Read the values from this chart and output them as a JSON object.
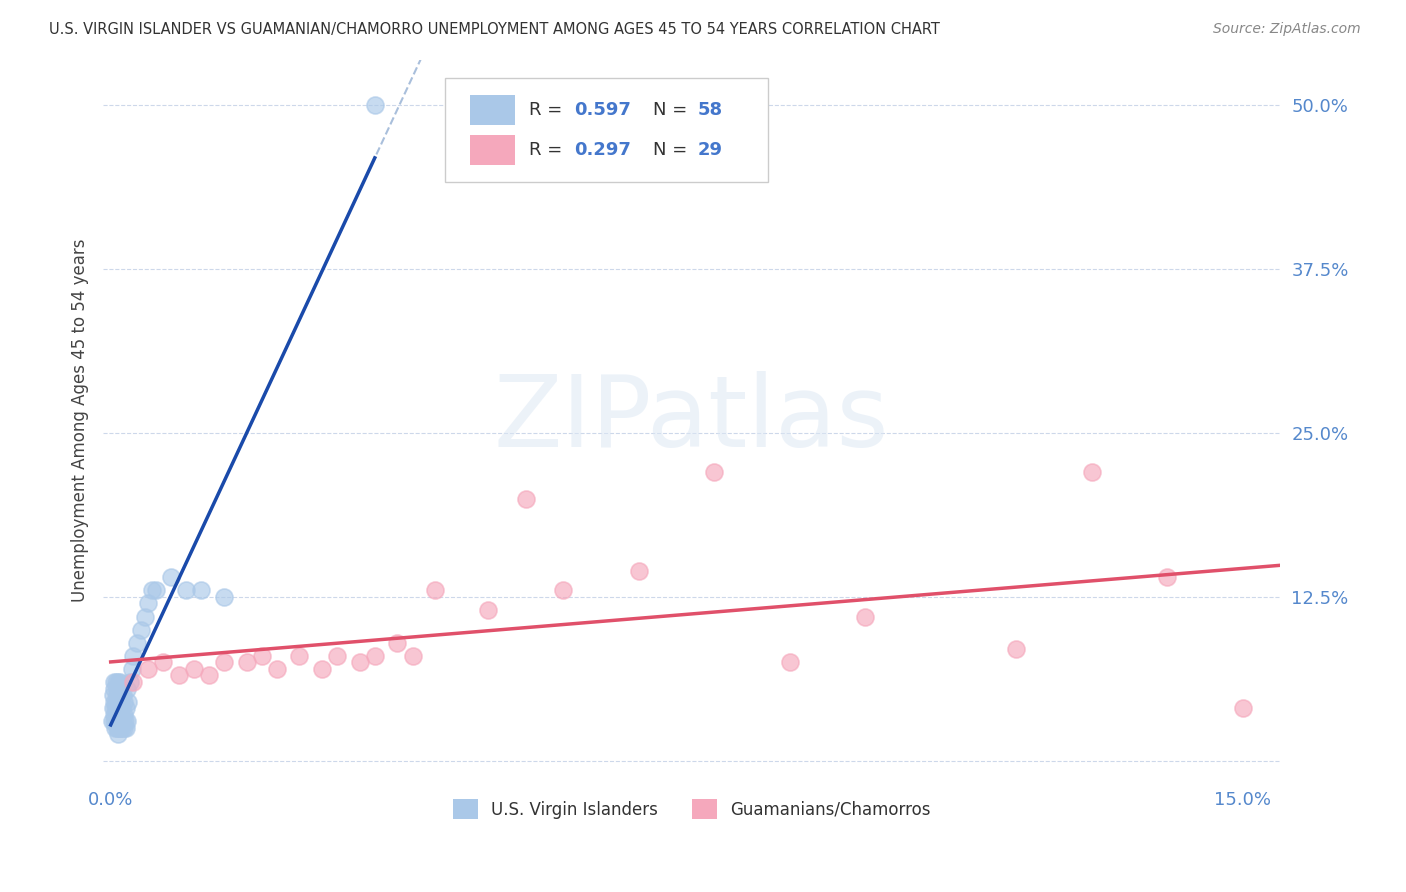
{
  "title": "U.S. VIRGIN ISLANDER VS GUAMANIAN/CHAMORRO UNEMPLOYMENT AMONG AGES 45 TO 54 YEARS CORRELATION CHART",
  "source": "Source: ZipAtlas.com",
  "ylabel": "Unemployment Among Ages 45 to 54 years",
  "legend_label1": "U.S. Virgin Islanders",
  "legend_label2": "Guamanians/Chamorros",
  "R1": "0.597",
  "N1": "58",
  "R2": "0.297",
  "N2": "29",
  "xlim": [
    -0.001,
    0.155
  ],
  "ylim": [
    -0.015,
    0.535
  ],
  "xtick_positions": [
    0.0,
    0.05,
    0.1,
    0.15
  ],
  "xtick_labels": [
    "0.0%",
    "",
    "",
    "15.0%"
  ],
  "ytick_positions": [
    0.0,
    0.125,
    0.25,
    0.375,
    0.5
  ],
  "ytick_labels": [
    "",
    "12.5%",
    "25.0%",
    "37.5%",
    "50.0%"
  ],
  "color_blue": "#aac8e8",
  "color_pink": "#f5a8bc",
  "line_color_blue": "#1a4aaa",
  "line_color_pink": "#e0506a",
  "line_color_grey": "#a0b8d8",
  "background_color": "#ffffff",
  "watermark_text": "ZIPatlas",
  "watermark_color": "#dde8f4",
  "tick_color": "#5588cc",
  "title_color": "#333333",
  "source_color": "#888888",
  "blue_x": [
    0.0002,
    0.0003,
    0.0003,
    0.0004,
    0.0004,
    0.0005,
    0.0005,
    0.0005,
    0.0006,
    0.0006,
    0.0007,
    0.0007,
    0.0007,
    0.0008,
    0.0008,
    0.0008,
    0.0009,
    0.0009,
    0.001,
    0.001,
    0.001,
    0.001,
    0.0011,
    0.0011,
    0.0012,
    0.0012,
    0.0012,
    0.0013,
    0.0013,
    0.0014,
    0.0014,
    0.0015,
    0.0015,
    0.0016,
    0.0016,
    0.0017,
    0.0018,
    0.0018,
    0.0019,
    0.002,
    0.002,
    0.0021,
    0.0022,
    0.0023,
    0.0025,
    0.0028,
    0.003,
    0.0035,
    0.004,
    0.0045,
    0.005,
    0.0055,
    0.006,
    0.008,
    0.01,
    0.012,
    0.015,
    0.035
  ],
  "blue_y": [
    0.03,
    0.04,
    0.05,
    0.035,
    0.055,
    0.03,
    0.045,
    0.06,
    0.025,
    0.04,
    0.03,
    0.045,
    0.06,
    0.025,
    0.04,
    0.055,
    0.03,
    0.05,
    0.02,
    0.035,
    0.045,
    0.06,
    0.025,
    0.04,
    0.03,
    0.045,
    0.06,
    0.025,
    0.04,
    0.03,
    0.05,
    0.025,
    0.04,
    0.03,
    0.05,
    0.035,
    0.025,
    0.045,
    0.03,
    0.025,
    0.04,
    0.055,
    0.03,
    0.045,
    0.06,
    0.07,
    0.08,
    0.09,
    0.1,
    0.11,
    0.12,
    0.13,
    0.13,
    0.14,
    0.13,
    0.13,
    0.125,
    0.5
  ],
  "pink_x": [
    0.003,
    0.005,
    0.007,
    0.009,
    0.011,
    0.013,
    0.015,
    0.018,
    0.02,
    0.022,
    0.025,
    0.028,
    0.03,
    0.033,
    0.035,
    0.038,
    0.04,
    0.043,
    0.05,
    0.055,
    0.06,
    0.07,
    0.08,
    0.09,
    0.1,
    0.12,
    0.13,
    0.14,
    0.15
  ],
  "pink_y": [
    0.06,
    0.07,
    0.075,
    0.065,
    0.07,
    0.065,
    0.075,
    0.075,
    0.08,
    0.07,
    0.08,
    0.07,
    0.08,
    0.075,
    0.08,
    0.09,
    0.08,
    0.13,
    0.115,
    0.2,
    0.13,
    0.145,
    0.22,
    0.075,
    0.11,
    0.085,
    0.22,
    0.14,
    0.04
  ]
}
